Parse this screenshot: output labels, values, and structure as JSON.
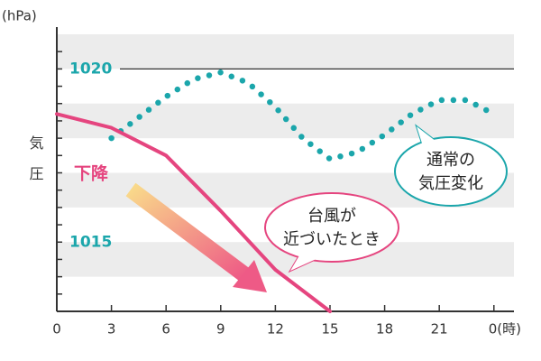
{
  "chart_data": {
    "type": "line",
    "unit_label": "(hPa)",
    "ylabel": "気圧",
    "xlim": [
      0,
      25.1
    ],
    "ylim": [
      1013,
      1021
    ],
    "xticks": [
      0,
      3,
      6,
      9,
      12,
      15,
      18,
      21,
      {
        "value": 24,
        "label": "0(時)"
      }
    ],
    "yticks": [
      1015,
      1020
    ],
    "series": [
      {
        "name": "通常の気圧変化",
        "color": "#1ba6ab",
        "style": "dotted",
        "x": [
          3,
          4.5,
          6,
          7.5,
          9,
          10.5,
          12,
          13.5,
          15,
          16.5,
          18,
          19.5,
          21,
          22.5,
          24
        ],
        "values": [
          1018.0,
          1018.6,
          1019.2,
          1019.7,
          1019.9,
          1019.6,
          1018.9,
          1018.0,
          1017.4,
          1017.6,
          1018.1,
          1018.7,
          1019.1,
          1019.1,
          1018.7
        ]
      },
      {
        "name": "台風が近づいたとき",
        "color": "#e5457f",
        "style": "solid",
        "x": [
          0,
          3,
          6,
          9,
          12,
          15
        ],
        "values": [
          1018.7,
          1018.3,
          1017.5,
          1015.9,
          1014.2,
          1013.0
        ]
      }
    ],
    "annotations": [
      {
        "text": "下降",
        "color": "#e5457f"
      },
      {
        "lines": [
          "通常の",
          "気圧変化"
        ],
        "color": "#1ba6ab"
      },
      {
        "lines": [
          "台風が",
          "近づいたとき"
        ],
        "color": "#e5457f"
      }
    ]
  }
}
